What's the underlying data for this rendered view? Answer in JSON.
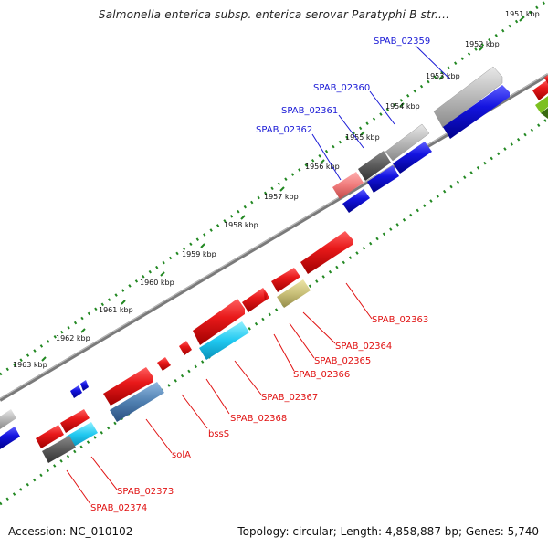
{
  "title": "Salmonella enterica subsp. enterica serovar Paratyphi B str....",
  "footer": {
    "accession": "Accession: NC_010102",
    "topology": "Topology: circular; Length: 4,858,887 bp; Genes: 5,740"
  },
  "ticks": [
    "1951 kbp",
    "1952 kbp",
    "1953 kbp",
    "1954 kbp",
    "1955 kbp",
    "1956 kbp",
    "1957 kbp",
    "1958 kbp",
    "1959 kbp",
    "1960 kbp",
    "1961 kbp",
    "1962 kbp",
    "1963 kbp"
  ],
  "gene_labels_top": [
    "SPAB_02359",
    "SPAB_02360",
    "SPAB_02361",
    "SPAB_02362"
  ],
  "gene_labels_bottom": [
    "SPAB_02363",
    "SPAB_02364",
    "SPAB_02365",
    "SPAB_02366",
    "SPAB_02367",
    "SPAB_02368",
    "bssS",
    "solA",
    "SPAB_02373",
    "SPAB_02374"
  ],
  "colors": {
    "forward_gene": "#e8191a",
    "reverse_gene": "#1414e0",
    "pseudo_gray": "#b8b8b8",
    "dark_gray": "#5a5a5a",
    "cyan": "#20c8f0",
    "steel_blue": "#4f7fb0",
    "olive": "#c8bf78",
    "pink": "#f07b7b",
    "backbone": "#808080",
    "tick_green": "#228822",
    "label_blue": "#1a1ad6",
    "label_red": "#e01010"
  }
}
